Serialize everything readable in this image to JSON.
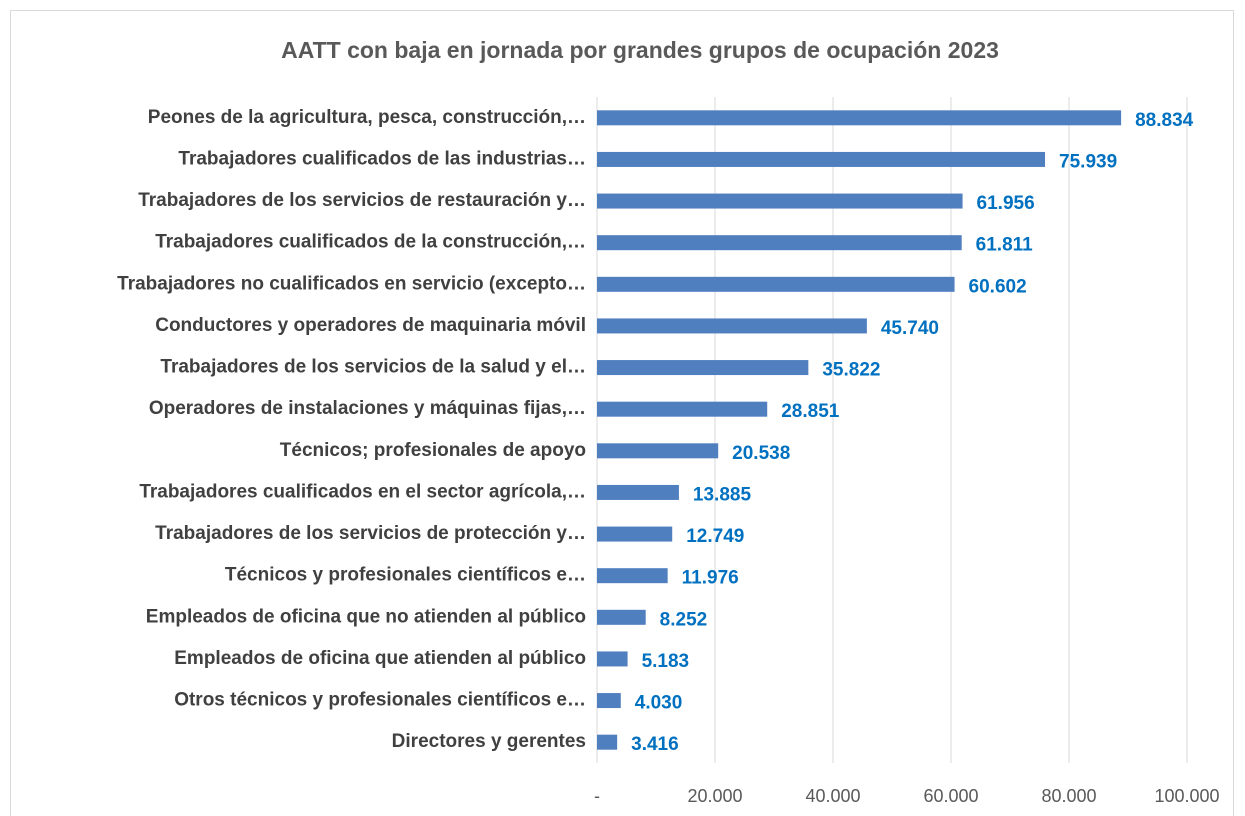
{
  "chart_data": {
    "type": "bar",
    "orientation": "horizontal",
    "title": "AATT con baja en jornada por grandes grupos de ocupación 2023",
    "categories": [
      "Peones de la agricultura, pesca, construcción,…",
      "Trabajadores cualificados de las industrias…",
      "Trabajadores de los servicios de restauración y…",
      "Trabajadores cualificados de la construcción,…",
      "Trabajadores no cualificados en servicio (excepto…",
      "Conductores y operadores de maquinaria móvil",
      "Trabajadores de los servicios de la salud y el…",
      "Operadores de instalaciones y máquinas fijas,…",
      "Técnicos; profesionales de apoyo",
      "Trabajadores cualificados en el sector agrícola,…",
      "Trabajadores de los servicios de protección y…",
      "Técnicos y profesionales científicos e…",
      "Empleados de oficina que no atienden al público",
      "Empleados de oficina que atienden al público",
      "Otros técnicos y profesionales científicos e…",
      "Directores y gerentes"
    ],
    "values": [
      88834,
      75939,
      61956,
      61811,
      60602,
      45740,
      35822,
      28851,
      20538,
      13885,
      12749,
      11976,
      8252,
      5183,
      4030,
      3416
    ],
    "value_labels": [
      "88.834",
      "75.939",
      "61.956",
      "61.811",
      "60.602",
      "45.740",
      "35.822",
      "28.851",
      "20.538",
      "13.885",
      "12.749",
      "11.976",
      "8.252",
      "5.183",
      "4.030",
      "3.416"
    ],
    "color": "#4f7fbf",
    "xlim": [
      0,
      100000
    ],
    "xticks": [
      {
        "value": 0,
        "label": "-"
      },
      {
        "value": 20000,
        "label": "20.000"
      },
      {
        "value": 40000,
        "label": "40.000"
      },
      {
        "value": 60000,
        "label": "60.000"
      },
      {
        "value": 80000,
        "label": "80.000"
      },
      {
        "value": 100000,
        "label": "100.000"
      }
    ],
    "grid": true
  }
}
